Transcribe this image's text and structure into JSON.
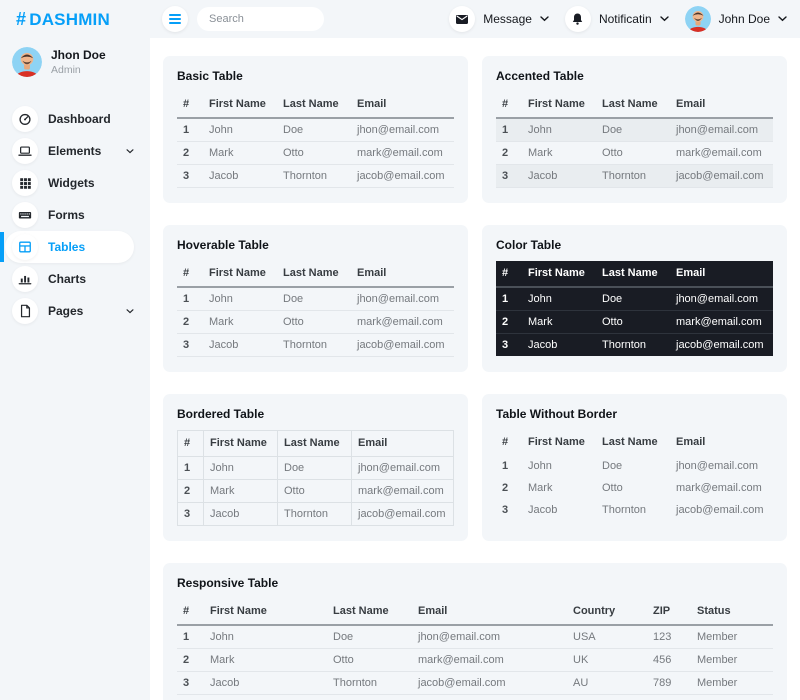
{
  "brand": {
    "hash": "#",
    "name": "DASHMIN"
  },
  "topbar": {
    "search_placeholder": "Search",
    "message_label": "Message",
    "notification_label": "Notificatin",
    "user_name": "John Doe"
  },
  "sidebar": {
    "user": {
      "name": "Jhon Doe",
      "role": "Admin"
    },
    "items": [
      {
        "label": "Dashboard",
        "icon": "tachometer-icon",
        "active": false,
        "has_submenu": false
      },
      {
        "label": "Elements",
        "icon": "laptop-icon",
        "active": false,
        "has_submenu": true
      },
      {
        "label": "Widgets",
        "icon": "grid-icon",
        "active": false,
        "has_submenu": false
      },
      {
        "label": "Forms",
        "icon": "keyboard-icon",
        "active": false,
        "has_submenu": false
      },
      {
        "label": "Tables",
        "icon": "table-icon",
        "active": true,
        "has_submenu": false
      },
      {
        "label": "Charts",
        "icon": "chart-bar-icon",
        "active": false,
        "has_submenu": false
      },
      {
        "label": "Pages",
        "icon": "file-icon",
        "active": false,
        "has_submenu": true
      }
    ]
  },
  "tables": {
    "basic": {
      "title": "Basic Table",
      "columns": [
        "#",
        "First Name",
        "Last Name",
        "Email"
      ],
      "rows": [
        [
          "1",
          "John",
          "Doe",
          "jhon@email.com"
        ],
        [
          "2",
          "Mark",
          "Otto",
          "mark@email.com"
        ],
        [
          "3",
          "Jacob",
          "Thornton",
          "jacob@email.com"
        ]
      ]
    },
    "accented": {
      "title": "Accented Table",
      "columns": [
        "#",
        "First Name",
        "Last Name",
        "Email"
      ],
      "rows": [
        [
          "1",
          "John",
          "Doe",
          "jhon@email.com"
        ],
        [
          "2",
          "Mark",
          "Otto",
          "mark@email.com"
        ],
        [
          "3",
          "Jacob",
          "Thornton",
          "jacob@email.com"
        ]
      ]
    },
    "hoverable": {
      "title": "Hoverable Table",
      "columns": [
        "#",
        "First Name",
        "Last Name",
        "Email"
      ],
      "rows": [
        [
          "1",
          "John",
          "Doe",
          "jhon@email.com"
        ],
        [
          "2",
          "Mark",
          "Otto",
          "mark@email.com"
        ],
        [
          "3",
          "Jacob",
          "Thornton",
          "jacob@email.com"
        ]
      ]
    },
    "color": {
      "title": "Color Table",
      "columns": [
        "#",
        "First Name",
        "Last Name",
        "Email"
      ],
      "rows": [
        [
          "1",
          "John",
          "Doe",
          "jhon@email.com"
        ],
        [
          "2",
          "Mark",
          "Otto",
          "mark@email.com"
        ],
        [
          "3",
          "Jacob",
          "Thornton",
          "jacob@email.com"
        ]
      ]
    },
    "bordered": {
      "title": "Bordered Table",
      "columns": [
        "#",
        "First Name",
        "Last Name",
        "Email"
      ],
      "rows": [
        [
          "1",
          "John",
          "Doe",
          "jhon@email.com"
        ],
        [
          "2",
          "Mark",
          "Otto",
          "mark@email.com"
        ],
        [
          "3",
          "Jacob",
          "Thornton",
          "jacob@email.com"
        ]
      ]
    },
    "borderless": {
      "title": "Table Without Border",
      "columns": [
        "#",
        "First Name",
        "Last Name",
        "Email"
      ],
      "rows": [
        [
          "1",
          "John",
          "Doe",
          "jhon@email.com"
        ],
        [
          "2",
          "Mark",
          "Otto",
          "mark@email.com"
        ],
        [
          "3",
          "Jacob",
          "Thornton",
          "jacob@email.com"
        ]
      ]
    },
    "responsive": {
      "title": "Responsive Table",
      "columns": [
        "#",
        "First Name",
        "Last Name",
        "Email",
        "Country",
        "ZIP",
        "Status"
      ],
      "rows": [
        [
          "1",
          "John",
          "Doe",
          "jhon@email.com",
          "USA",
          "123",
          "Member"
        ],
        [
          "2",
          "Mark",
          "Otto",
          "mark@email.com",
          "UK",
          "456",
          "Member"
        ],
        [
          "3",
          "Jacob",
          "Thornton",
          "jacob@email.com",
          "AU",
          "789",
          "Member"
        ]
      ]
    }
  },
  "icons": {
    "topbar": [
      "hamburger-icon",
      "envelope-icon",
      "bell-icon",
      "chevron-down-icon",
      "user-avatar"
    ],
    "sidebar": [
      "tachometer-icon",
      "laptop-icon",
      "grid-icon",
      "keyboard-icon",
      "table-icon",
      "chart-bar-icon",
      "file-icon",
      "chevron-down-icon"
    ]
  },
  "colors": {
    "primary": "#069FF8",
    "light": "#F3F6F9",
    "dark": "#191C24",
    "content_bg": "#FFFFFF"
  }
}
